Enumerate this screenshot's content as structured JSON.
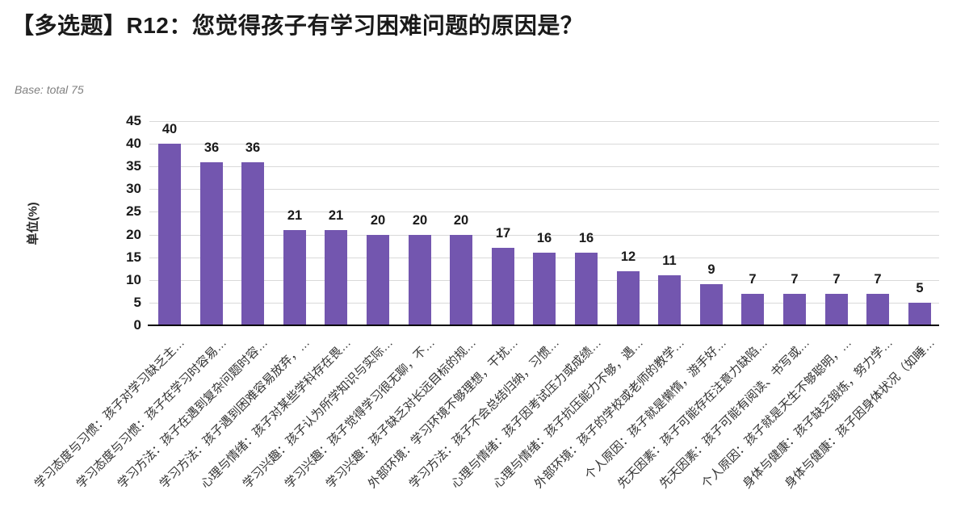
{
  "page": {
    "title": "【多选题】R12：您觉得孩子有学习困难问题的原因是？",
    "base_note": "Base: total 75"
  },
  "chart_data": {
    "type": "bar",
    "title": "【多选题】R12：您觉得孩子有学习困难问题的原因是？",
    "subtitle": "Base: total 75",
    "xlabel": "",
    "ylabel": "单位(%)",
    "ylim": [
      0,
      45
    ],
    "ytick_step": 5,
    "grid": true,
    "legend_position": "none",
    "bar_color": "#7356AF",
    "data_labels_shown": true,
    "categories": [
      "学习态度与习惯：孩子对学习缺乏主…",
      "学习态度与习惯：孩子在学习时容易…",
      "学习方法：孩子在遇到复杂问题时容…",
      "学习方法：孩子遇到困难容易放弃，…",
      "心理与情绪：孩子对某些学科存在畏…",
      "学习兴趣：孩子认为所学知识与实际…",
      "学习兴趣：孩子觉得学习很无聊，不…",
      "学习兴趣：孩子缺乏对长远目标的规…",
      "外部环境：学习环境不够理想，干扰…",
      "学习方法：孩子不会总结归纳，习惯…",
      "心理与情绪：孩子因考试压力或成绩…",
      "心理与情绪：孩子抗压能力不够，遇…",
      "外部环境：孩子的学校或老师的教学…",
      "个人原因：孩子就是懒惰，游手好…",
      "先天因素：孩子可能存在注意力缺陷…",
      "先天因素：孩子可能有阅读、书写或…",
      "个人原因：孩子就是天生不够聪明，…",
      "身体与健康：孩子缺乏锻炼，努力学…",
      "身体与健康：孩子因身体状况（如睡…"
    ],
    "values": [
      40,
      36,
      36,
      21,
      21,
      20,
      20,
      20,
      17,
      16,
      16,
      12,
      11,
      9,
      7,
      7,
      7,
      7,
      5
    ]
  },
  "colors": {
    "bar": "#7356AF",
    "gridline": "#d9d9d9",
    "axis_line": "#000000",
    "title_text": "#1a1a1a",
    "base_note_text": "#808080",
    "category_text": "#333333"
  }
}
